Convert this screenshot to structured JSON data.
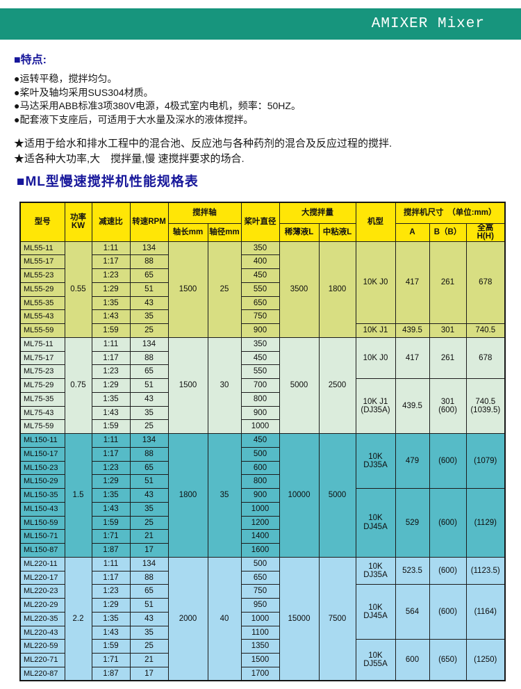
{
  "page": {
    "brand": "AMIXER Mixer"
  },
  "features": {
    "title": "■特点:",
    "bullets": [
      "●运转平稳，搅拌均匀。",
      "●桨叶及轴均采用SUS304材质。",
      "●马达采用ABB标准3项380V电源，4极式室内电机，频率：50HZ。",
      "●配套液下支座后，可适用于大水量及深水的液体搅拌。"
    ],
    "stars": [
      "★适用于给水和排水工程中的混合池、反应池与各种药剂的混合及反应过程的搅拌.",
      "★适各种大功率,大　搅拌量,慢 速搅拌要求的场合."
    ]
  },
  "spec_table": {
    "title": "■ML型慢速搅拌机性能规格表",
    "headers": {
      "model": "型号",
      "power": "功率KW",
      "ratio": "减速比",
      "rpm": "转速RPM",
      "shaft_group": "搅拌轴",
      "shaft_length": "轴长mm",
      "shaft_dia": "轴径mm",
      "blade": "桨叶直径",
      "volume_group": "大搅拌量",
      "thin": "稀薄液L",
      "viscous": "中粘液L",
      "machine": "机型",
      "size_group": "搅拌机尺寸　（单位:mm）",
      "dim_a": "A",
      "dim_b": "B（B）",
      "dim_h": "全高\nH(H)"
    },
    "sections": [
      {
        "id": "ML55",
        "color": "ml55_bg",
        "power": "0.55",
        "shaft_length": "1500",
        "shaft_dia": "25",
        "thin": "3500",
        "viscous": "1800",
        "rows": [
          {
            "model": "ML55-11",
            "ratio": "1:11",
            "rpm": "134",
            "blade": "350"
          },
          {
            "model": "ML55-17",
            "ratio": "1:17",
            "rpm": "88",
            "blade": "400"
          },
          {
            "model": "ML55-23",
            "ratio": "1:23",
            "rpm": "65",
            "blade": "450"
          },
          {
            "model": "ML55-29",
            "ratio": "1:29",
            "rpm": "51",
            "blade": "550"
          },
          {
            "model": "ML55-35",
            "ratio": "1:35",
            "rpm": "43",
            "blade": "650"
          },
          {
            "model": "ML55-43",
            "ratio": "1:43",
            "rpm": "35",
            "blade": "750"
          },
          {
            "model": "ML55-59",
            "ratio": "1:59",
            "rpm": "25",
            "blade": "900"
          }
        ],
        "machines": [
          {
            "span": 6,
            "name": "10K J0",
            "a": "417",
            "b": "261",
            "h": "678"
          },
          {
            "span": 1,
            "name": "10K J1",
            "a": "439.5",
            "b": "301",
            "h": "740.5"
          }
        ]
      },
      {
        "id": "ML75",
        "color": "ml75_bg",
        "power": "0.75",
        "shaft_length": "1500",
        "shaft_dia": "30",
        "thin": "5000",
        "viscous": "2500",
        "rows": [
          {
            "model": "ML75-11",
            "ratio": "1:11",
            "rpm": "134",
            "blade": "350"
          },
          {
            "model": "ML75-17",
            "ratio": "1:17",
            "rpm": "88",
            "blade": "450"
          },
          {
            "model": "ML75-23",
            "ratio": "1:23",
            "rpm": "65",
            "blade": "550"
          },
          {
            "model": "ML75-29",
            "ratio": "1:29",
            "rpm": "51",
            "blade": "700"
          },
          {
            "model": "ML75-35",
            "ratio": "1:35",
            "rpm": "43",
            "blade": "800"
          },
          {
            "model": "ML75-43",
            "ratio": "1:43",
            "rpm": "35",
            "blade": "900"
          },
          {
            "model": "ML75-59",
            "ratio": "1:59",
            "rpm": "25",
            "blade": "1000"
          }
        ],
        "machines": [
          {
            "span": 3,
            "name": "10K J0",
            "a": "417",
            "b": "261",
            "h": "678"
          },
          {
            "span": 4,
            "name": "10K J1\n(DJ35A)",
            "a": "439.5",
            "b": "301\n(600)",
            "h": "740.5\n(1039.5)"
          }
        ]
      },
      {
        "id": "ML150",
        "color": "ml150_bg",
        "power": "1.5",
        "shaft_length": "1800",
        "shaft_dia": "35",
        "thin": "10000",
        "viscous": "5000",
        "rows": [
          {
            "model": "ML150-11",
            "ratio": "1:11",
            "rpm": "134",
            "blade": "450"
          },
          {
            "model": "ML150-17",
            "ratio": "1:17",
            "rpm": "88",
            "blade": "500"
          },
          {
            "model": "ML150-23",
            "ratio": "1:23",
            "rpm": "65",
            "blade": "600"
          },
          {
            "model": "ML150-29",
            "ratio": "1:29",
            "rpm": "51",
            "blade": "800"
          },
          {
            "model": "ML150-35",
            "ratio": "1:35",
            "rpm": "43",
            "blade": "900"
          },
          {
            "model": "ML150-43",
            "ratio": "1:43",
            "rpm": "35",
            "blade": "1000"
          },
          {
            "model": "ML150-59",
            "ratio": "1:59",
            "rpm": "25",
            "blade": "1200"
          },
          {
            "model": "ML150-71",
            "ratio": "1:71",
            "rpm": "21",
            "blade": "1400"
          },
          {
            "model": "ML150-87",
            "ratio": "1:87",
            "rpm": "17",
            "blade": "1600"
          }
        ],
        "machines": [
          {
            "span": 4,
            "name": "10K\nDJ35A",
            "a": "479",
            "b": "(600)",
            "h": "(1079)"
          },
          {
            "span": 5,
            "name": "10K\nDJ45A",
            "a": "529",
            "b": "(600)",
            "h": "(1129)"
          }
        ]
      },
      {
        "id": "ML220",
        "color": "ml220_bg",
        "power": "2.2",
        "shaft_length": "2000",
        "shaft_dia": "40",
        "thin": "15000",
        "viscous": "7500",
        "rows": [
          {
            "model": "ML220-11",
            "ratio": "1:11",
            "rpm": "134",
            "blade": "500"
          },
          {
            "model": "ML220-17",
            "ratio": "1:17",
            "rpm": "88",
            "blade": "650"
          },
          {
            "model": "ML220-23",
            "ratio": "1:23",
            "rpm": "65",
            "blade": "750"
          },
          {
            "model": "ML220-29",
            "ratio": "1:29",
            "rpm": "51",
            "blade": "950"
          },
          {
            "model": "ML220-35",
            "ratio": "1:35",
            "rpm": "43",
            "blade": "1000"
          },
          {
            "model": "ML220-43",
            "ratio": "1:43",
            "rpm": "35",
            "blade": "1100"
          },
          {
            "model": "ML220-59",
            "ratio": "1:59",
            "rpm": "25",
            "blade": "1350"
          },
          {
            "model": "ML220-71",
            "ratio": "1:71",
            "rpm": "21",
            "blade": "1500"
          },
          {
            "model": "ML220-87",
            "ratio": "1:87",
            "rpm": "17",
            "blade": "1700"
          }
        ],
        "machines": [
          {
            "span": 2,
            "name": "10K\nDJ35A",
            "a": "523.5",
            "b": "(600)",
            "h": "(1123.5)"
          },
          {
            "span": 4,
            "name": "10K\nDJ45A",
            "a": "564",
            "b": "(600)",
            "h": "(1164)"
          },
          {
            "span": 3,
            "name": "10K\nDJ55A",
            "a": "600",
            "b": "(650)",
            "h": "(1250)"
          }
        ]
      }
    ]
  },
  "colors": {
    "topbar": "#17957d",
    "title_blue": "#16169a",
    "header_yellow": "#ffe606",
    "ml55_bg": "#d8de82",
    "ml75_bg": "#dbecdc",
    "ml150_bg": "#56bbc7",
    "ml220_bg": "#a9daf1",
    "border": "#1b1b1b"
  }
}
